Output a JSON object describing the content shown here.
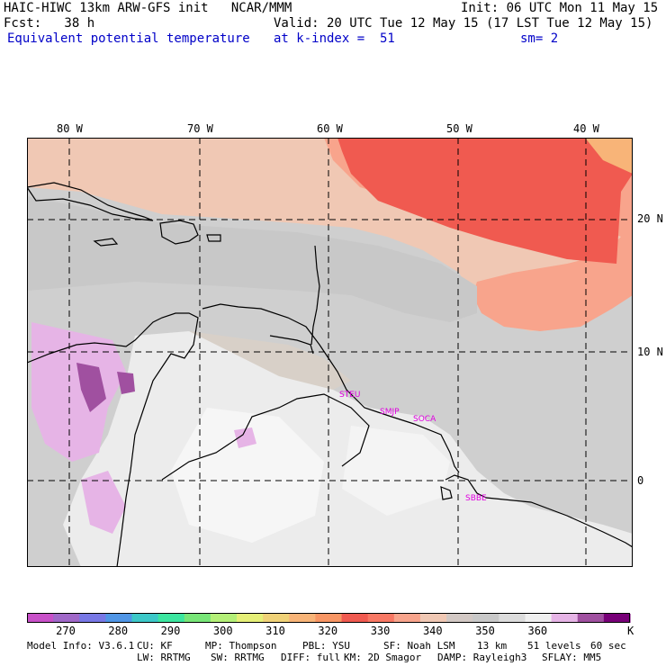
{
  "header": {
    "title": "HAIC-HIWC 13km ARW-GFS init   NCAR/MMM",
    "init": "Init: 06 UTC Mon 11 May 15",
    "fcst": "Fcst:   38 h",
    "valid": "Valid: 20 UTC Tue 12 May 15 (17 LST Tue 12 May 15)",
    "field": "Equivalent potential temperature",
    "level": "at k-index =  51",
    "smooth": "sm= 2"
  },
  "map": {
    "lon_labels": [
      "80 W",
      "70 W",
      "60 W",
      "50 W",
      "40 W"
    ],
    "lat_labels": [
      "20 N",
      "10 N",
      "0"
    ],
    "stations": [
      "STEU",
      "SMJP",
      "SOCA",
      "SBBE"
    ],
    "colors": {
      "land_outline": "#000000",
      "station_label": "#e000e0"
    }
  },
  "colorbar": {
    "tick_labels": [
      "270",
      "280",
      "290",
      "300",
      "310",
      "320",
      "330",
      "340",
      "350",
      "360"
    ],
    "unit": "K",
    "colors": [
      "#c850c8",
      "#a068c8",
      "#7878e6",
      "#5096e6",
      "#3cc8c8",
      "#3ce6a0",
      "#78e678",
      "#b4f078",
      "#e6f078",
      "#f0d278",
      "#f8b478",
      "#f89664",
      "#f05a50",
      "#f87864",
      "#f8a48c",
      "#f0c8b4",
      "#d2c8c4",
      "#c8c8c8",
      "#dcdcdc",
      "#f0f0f0",
      "#e6b4e6",
      "#a050a0",
      "#780078"
    ]
  },
  "footer": {
    "line1": [
      "Model Info: V3.6.1",
      "CU: KF",
      "MP: Thompson",
      "PBL: YSU",
      "SF: Noah LSM",
      "13 km",
      "51 levels",
      "60 sec"
    ],
    "line2": [
      "LW: RRTMG",
      "SW: RRTMG",
      "DIFF: full",
      "KM: 2D Smagor",
      "DAMP: Rayleigh3",
      "SFLAY: MM5"
    ]
  }
}
